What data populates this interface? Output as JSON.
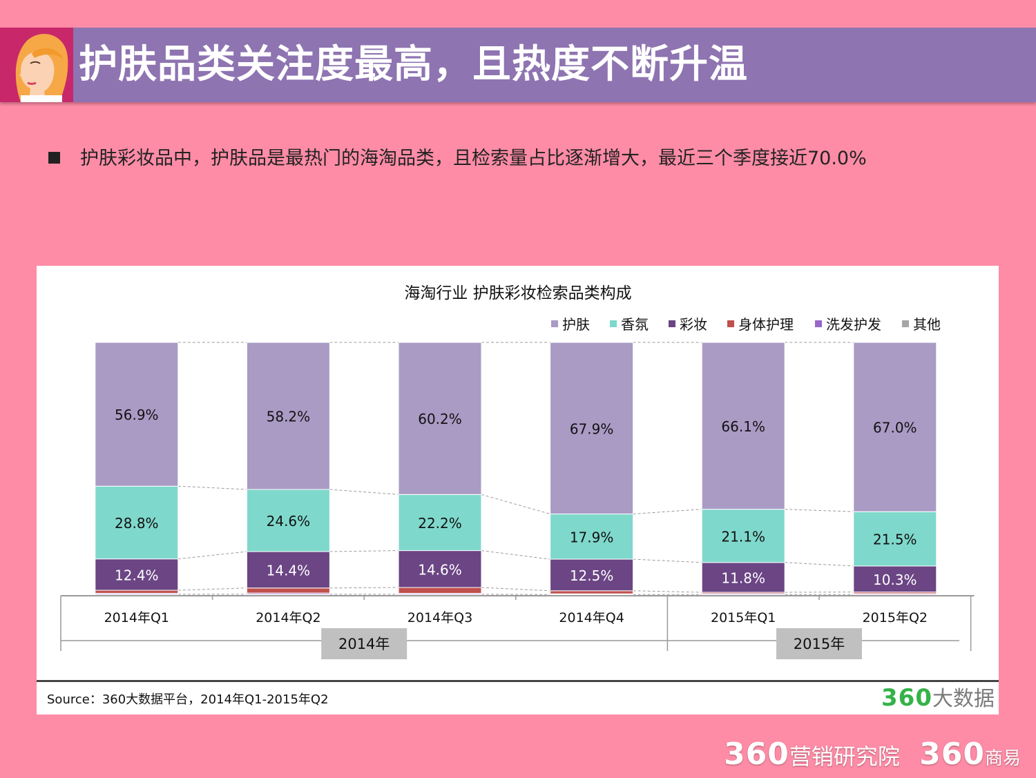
{
  "header": {
    "title": "护肤品类关注度最高，且热度不断升温",
    "avatar_icon": "woman-avatar-icon"
  },
  "bullet": {
    "text": "护肤彩妆品中，护肤品是最热门的海淘品类，且检索量占比逐渐增大，最近三个季度接近70.0%"
  },
  "chart_data": {
    "type": "bar",
    "stacked": true,
    "percent_stacked": true,
    "title": "海淘行业 护肤彩妆检索品类构成",
    "legend_position": "top-right",
    "categories": [
      "2014年Q1",
      "2014年Q2",
      "2014年Q3",
      "2014年Q4",
      "2015年Q1",
      "2015年Q2"
    ],
    "groups": [
      {
        "label": "2014年",
        "categories": [
          "2014年Q1",
          "2014年Q2",
          "2014年Q3",
          "2014年Q4"
        ]
      },
      {
        "label": "2015年",
        "categories": [
          "2015年Q1",
          "2015年Q2"
        ]
      }
    ],
    "ylim": [
      0,
      100
    ],
    "series": [
      {
        "name": "其他",
        "color": "#a6a6a6",
        "values": [
          0.3,
          0.3,
          0.3,
          0.2,
          0.2,
          0.2
        ],
        "labels": [
          "",
          "",
          "",
          "",
          "",
          ""
        ]
      },
      {
        "name": "洗发护发",
        "color": "#9966cc",
        "values": [
          0.4,
          0.5,
          0.4,
          0.3,
          0.4,
          0.4
        ],
        "labels": [
          "",
          "",
          "",
          "",
          "",
          ""
        ]
      },
      {
        "name": "身体护理",
        "color": "#c0504d",
        "values": [
          1.2,
          2.0,
          2.3,
          1.2,
          0.5,
          0.6
        ],
        "labels": [
          "",
          "",
          "",
          "",
          "",
          ""
        ]
      },
      {
        "name": "彩妆",
        "color": "#6b4584",
        "values": [
          12.4,
          14.4,
          14.6,
          12.5,
          11.8,
          10.3
        ],
        "labels": [
          "12.4%",
          "14.4%",
          "14.6%",
          "12.5%",
          "11.8%",
          "10.3%"
        ]
      },
      {
        "name": "香氛",
        "color": "#7fd8cc",
        "values": [
          28.8,
          24.6,
          22.2,
          17.9,
          21.1,
          21.5
        ],
        "labels": [
          "28.8%",
          "24.6%",
          "22.2%",
          "17.9%",
          "21.1%",
          "21.5%"
        ]
      },
      {
        "name": "护肤",
        "color": "#aa9bc5",
        "values": [
          56.9,
          58.2,
          60.2,
          67.9,
          66.1,
          67.0
        ],
        "labels": [
          "56.9%",
          "58.2%",
          "60.2%",
          "67.9%",
          "66.1%",
          "67.0%"
        ]
      }
    ],
    "legend_order": [
      "护肤",
      "香氛",
      "彩妆",
      "身体护理",
      "洗发护发",
      "其他"
    ],
    "label_colors": {
      "护肤": "#111111",
      "香氛": "#111111",
      "彩妆": "#ffffff"
    }
  },
  "source": {
    "text": "Source：360大数据平台，2014年Q1-2015年Q2",
    "logo_num": "360",
    "logo_text": "大数据"
  },
  "footer": {
    "brand1_num": "360",
    "brand1_text": "营销研究院",
    "brand2_num": "360",
    "brand2_text": "商易"
  }
}
